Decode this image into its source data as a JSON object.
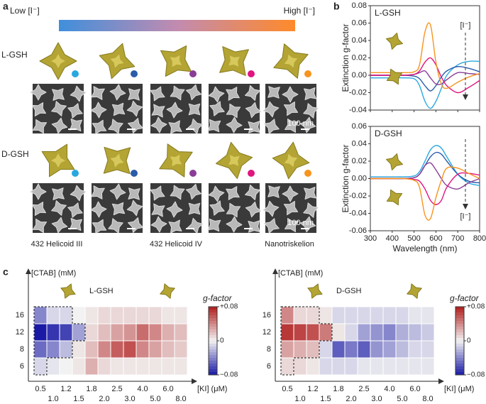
{
  "panel_labels": [
    "a",
    "b",
    "c"
  ],
  "panel_a": {
    "gradient_low": "Low [I⁻]",
    "gradient_high": "High [I⁻]",
    "rows": [
      "L-GSH",
      "D-GSH"
    ],
    "scale_bar": "100 nm",
    "morphologies": [
      "432 Helicoid III",
      "432 Helicoid IV",
      "Nanotriskelion"
    ]
  },
  "chart_data": [
    {
      "type": "line",
      "title": "L-GSH",
      "y_label": "Extinction g-factor",
      "annotation": "[I⁻]",
      "x": [
        300,
        350,
        400,
        450,
        500,
        525,
        550,
        575,
        600,
        625,
        650,
        700,
        750,
        800
      ],
      "series": [
        {
          "color": "#29a8e0",
          "values": [
            -0.003,
            -0.003,
            -0.003,
            -0.003,
            -0.004,
            -0.012,
            -0.03,
            -0.038,
            -0.03,
            -0.015,
            0.0,
            0.012,
            0.016,
            0.016
          ]
        },
        {
          "color": "#2a5caa",
          "values": [
            0.0,
            0.0,
            0.0,
            0.0,
            -0.001,
            -0.004,
            -0.012,
            -0.018,
            -0.012,
            -0.002,
            0.005,
            0.01,
            0.008,
            0.004
          ]
        },
        {
          "color": "#8a3d96",
          "values": [
            0.0,
            0.0,
            0.0,
            0.0,
            0.001,
            0.003,
            0.005,
            -0.003,
            -0.01,
            -0.01,
            -0.005,
            0.003,
            0.002,
            0.001
          ]
        },
        {
          "color": "#e0157f",
          "values": [
            0.0,
            0.0,
            0.0,
            0.0,
            0.001,
            0.005,
            0.015,
            0.02,
            0.012,
            -0.002,
            -0.012,
            -0.02,
            -0.014,
            -0.006
          ]
        },
        {
          "color": "#f7941d",
          "values": [
            0.003,
            0.003,
            0.003,
            0.003,
            0.004,
            0.012,
            0.05,
            0.058,
            0.015,
            -0.01,
            -0.015,
            -0.008,
            -0.002,
            0.002
          ]
        }
      ],
      "xlim": [
        300,
        800
      ],
      "ylim": [
        -0.04,
        0.08
      ],
      "xticks": [
        300,
        400,
        500,
        600,
        700,
        800
      ],
      "yticks": [
        {
          "value": -0.04,
          "label": "-0.04"
        },
        {
          "value": -0.02,
          "label": "-0.02"
        },
        {
          "value": 0,
          "label": "0.00"
        },
        {
          "value": 0.02,
          "label": "0.02"
        },
        {
          "value": 0.04,
          "label": "0.04"
        },
        {
          "value": 0.06,
          "label": "0.06"
        },
        {
          "value": 0.08,
          "label": "0.08"
        }
      ]
    },
    {
      "type": "line",
      "title": "D-GSH",
      "y_label": "Extinction g-factor",
      "x_label": "Wavelength (nm)",
      "annotation": "[I⁻]",
      "x": [
        300,
        350,
        400,
        450,
        500,
        525,
        550,
        575,
        600,
        625,
        650,
        700,
        750,
        800
      ],
      "series": [
        {
          "color": "#29a8e0",
          "values": [
            0.002,
            0.002,
            0.002,
            0.002,
            0.003,
            0.008,
            0.02,
            0.033,
            0.038,
            0.035,
            0.025,
            0.005,
            -0.005,
            -0.008
          ]
        },
        {
          "color": "#2a5caa",
          "values": [
            0.0,
            0.0,
            0.0,
            0.0,
            0.001,
            0.005,
            0.015,
            0.025,
            0.03,
            0.028,
            0.02,
            0.005,
            -0.003,
            -0.005
          ]
        },
        {
          "color": "#8a3d96",
          "values": [
            0.0,
            0.0,
            0.0,
            0.0,
            0.001,
            0.005,
            0.015,
            0.018,
            0.01,
            0.0,
            -0.008,
            -0.012,
            -0.005,
            0.0
          ]
        },
        {
          "color": "#e0157f",
          "values": [
            0.0,
            0.0,
            0.0,
            0.0,
            -0.001,
            -0.003,
            -0.012,
            -0.025,
            -0.03,
            -0.025,
            -0.01,
            0.005,
            0.006,
            0.004
          ]
        },
        {
          "color": "#f7941d",
          "values": [
            0.0,
            0.0,
            0.0,
            0.0,
            -0.002,
            -0.01,
            -0.042,
            -0.046,
            -0.022,
            -0.002,
            0.012,
            0.012,
            0.006,
            0.0
          ]
        }
      ],
      "xlim": [
        300,
        800
      ],
      "ylim": [
        -0.06,
        0.06
      ],
      "xticks": [
        300,
        400,
        500,
        600,
        700,
        800
      ],
      "yticks": [
        {
          "value": -0.06,
          "label": "-0.06"
        },
        {
          "value": -0.04,
          "label": "-0.04"
        },
        {
          "value": -0.02,
          "label": "-0.02"
        },
        {
          "value": 0,
          "label": "0.00"
        },
        {
          "value": 0.02,
          "label": "0.02"
        },
        {
          "value": 0.04,
          "label": "0.04"
        },
        {
          "value": 0.06,
          "label": "0.06"
        }
      ]
    },
    {
      "type": "heatmap",
      "title": "L-GSH",
      "x_label": "[KI] (μM)",
      "y_label": "[CTAB] (mM)",
      "colorbar_label": "g-factor",
      "x": [
        "0.5",
        "1.0",
        "1.2",
        "1.5",
        "1.8",
        "2.0",
        "2.5",
        "3.0",
        "4.0",
        "5.0",
        "6.0",
        "8.0"
      ],
      "y": [
        "16",
        "12",
        "8",
        "6"
      ],
      "values": [
        [
          -0.04,
          -0.01,
          -0.01,
          0,
          0.005,
          0.01,
          0.01,
          0.01,
          0.01,
          0.01,
          0.005,
          0.005
        ],
        [
          -0.08,
          -0.07,
          -0.065,
          -0.03,
          0.01,
          0.02,
          0.03,
          0.035,
          0.05,
          0.04,
          0.025,
          0.02
        ],
        [
          -0.05,
          -0.04,
          -0.02,
          0.005,
          0.02,
          0.04,
          0.055,
          0.06,
          0.04,
          0.03,
          0.02,
          0.015
        ],
        [
          -0.01,
          -0.005,
          0,
          0.005,
          0.025,
          0.01,
          0.005,
          0.005,
          0.005,
          0.005,
          0.005,
          0.005
        ]
      ],
      "colormap": [
        "#1a1aa6",
        "#f2f2f2",
        "#b01c1c"
      ],
      "clim": [
        -0.08,
        0.08
      ],
      "cticks": [
        {
          "value": 0.08,
          "label": "+0.08"
        },
        0,
        {
          "value": -0.08,
          "label": "−0.08"
        }
      ]
    },
    {
      "type": "heatmap",
      "title": "D-GSH",
      "x_label": "[KI] (μM)",
      "y_label": "[CTAB] (mM)",
      "colorbar_label": "g-factor",
      "x": [
        "0.5",
        "1.0",
        "1.2",
        "1.5",
        "1.8",
        "2.0",
        "2.5",
        "3.0",
        "4.0",
        "5.0",
        "6.0",
        "8.0"
      ],
      "y": [
        "16",
        "12",
        "8",
        "6"
      ],
      "values": [
        [
          0.04,
          0.01,
          0.01,
          0.005,
          -0.01,
          -0.01,
          -0.01,
          -0.01,
          -0.01,
          -0.01,
          -0.005,
          -0.005
        ],
        [
          0.07,
          0.065,
          0.06,
          0.045,
          0.005,
          -0.01,
          -0.03,
          -0.035,
          -0.04,
          -0.025,
          -0.02,
          -0.015
        ],
        [
          0.03,
          0.025,
          0.02,
          -0.01,
          -0.055,
          -0.045,
          -0.055,
          -0.035,
          -0.03,
          -0.02,
          -0.01,
          -0.01
        ],
        [
          0.01,
          0.01,
          0.005,
          -0.01,
          -0.01,
          -0.01,
          -0.005,
          -0.005,
          -0.005,
          -0.005,
          -0.005,
          -0.005
        ]
      ],
      "colormap": [
        "#1a1aa6",
        "#f2f2f2",
        "#b01c1c"
      ],
      "clim": [
        -0.08,
        0.08
      ],
      "cticks": [
        {
          "value": 0.08,
          "label": "+0.08"
        },
        0,
        {
          "value": -0.08,
          "label": "−0.08"
        }
      ]
    }
  ]
}
